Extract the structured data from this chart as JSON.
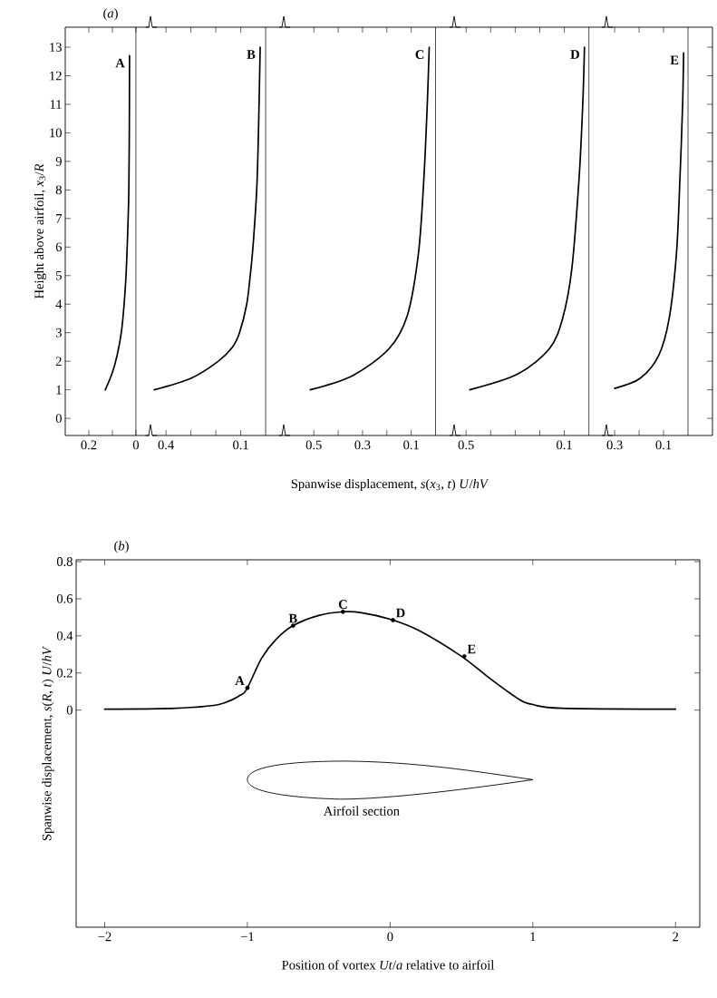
{
  "chart_data": [
    {
      "type": "line",
      "title": "(*a*)",
      "ylabel": "Height above airfoil, *x*$_{3}$/*R*",
      "xlim": [
        0.3,
        -0.058
      ],
      "ylim": [
        -0.6,
        13.7
      ],
      "xticks": [
        0.2,
        {
          "value": 0.1,
          "label": null
        },
        0
      ],
      "yticks": [
        0,
        1,
        2,
        3,
        4,
        5,
        6,
        7,
        8,
        9,
        10,
        11,
        12,
        13
      ],
      "ref_lines": [
        {
          "axis": "x",
          "value": 0
        }
      ],
      "series": [
        {
          "name": "A",
          "color": "#000000",
          "x": [
            0.13,
            0.1,
            0.08,
            0.062,
            0.05,
            0.042,
            0.037,
            0.033,
            0.03,
            0.028,
            0.027
          ],
          "values": [
            1,
            1.6,
            2.2,
            3,
            4,
            5,
            6,
            7,
            8,
            10,
            12.7
          ]
        }
      ]
    },
    {
      "type": "line",
      "xlim": [
        0.455,
        -0.076
      ],
      "ylim": [
        -0.6,
        13.7
      ],
      "tick_labels": "x",
      "xticks": [
        0.4,
        {
          "value": 0.3,
          "label": null
        },
        {
          "value": 0.2,
          "label": null
        },
        0.1
      ],
      "ref_lines": [
        {
          "axis": "x",
          "value": 0
        }
      ],
      "series": [
        {
          "name": "B",
          "color": "#000000",
          "x": [
            0.447,
            0.3,
            0.19,
            0.133,
            0.105,
            0.076,
            0.062,
            0.051,
            0.036,
            0.029,
            0.022
          ],
          "values": [
            1,
            1.4,
            2,
            2.5,
            3,
            4,
            5,
            6,
            8,
            10,
            13
          ]
        }
      ]
    },
    {
      "type": "line",
      "xlabel": "Spanwise displacement, *s*(*x*$_{3}$, *t*) *U*/*hV*",
      "xlim": [
        0.62,
        -0.08
      ],
      "ylim": [
        -0.6,
        13.7
      ],
      "tick_labels": "x",
      "xticks": [
        0.5,
        {
          "value": 0.4,
          "label": null
        },
        0.3,
        {
          "value": 0.2,
          "label": null
        },
        0.1
      ],
      "ref_lines": [
        {
          "axis": "x",
          "value": 0
        }
      ],
      "series": [
        {
          "name": "C",
          "color": "#000000",
          "x": [
            0.515,
            0.34,
            0.19,
            0.116,
            0.07,
            0.048,
            0.034,
            0.026
          ],
          "values": [
            1,
            1.5,
            2.45,
            3.6,
            5.8,
            8.4,
            11,
            13
          ]
        }
      ]
    },
    {
      "type": "line",
      "xlim": [
        0.545,
        -0.075
      ],
      "ylim": [
        -0.6,
        13.7
      ],
      "tick_labels": "x",
      "xticks": [
        0.5,
        {
          "value": 0.4,
          "label": null
        },
        {
          "value": 0.3,
          "label": null
        },
        {
          "value": 0.2,
          "label": null
        },
        0.1
      ],
      "ref_lines": [
        {
          "axis": "x",
          "value": 0
        }
      ],
      "series": [
        {
          "name": "D",
          "color": "#000000",
          "x": [
            0.485,
            0.29,
            0.16,
            0.107,
            0.07,
            0.04,
            0.025,
            0.018
          ],
          "values": [
            1,
            1.55,
            2.45,
            3.5,
            5.2,
            8.4,
            11,
            13
          ]
        }
      ]
    },
    {
      "type": "line",
      "xlim": [
        0.33,
        -0.1
      ],
      "ylim": [
        -0.6,
        13.7
      ],
      "tick_labels": "x",
      "xticks": [
        0.3,
        {
          "value": 0.2,
          "label": null
        },
        0.1
      ],
      "yticks": [
        0,
        1,
        2,
        3,
        4,
        5,
        6,
        7,
        8,
        9,
        10,
        11,
        12,
        13
      ],
      "ref_lines": [
        {
          "axis": "x",
          "value": 0
        }
      ],
      "series": [
        {
          "name": "E",
          "color": "#000000",
          "x": [
            0.3,
            0.196,
            0.12,
            0.077,
            0.047,
            0.033,
            0.022,
            0.018
          ],
          "values": [
            1.05,
            1.4,
            2.2,
            3.5,
            5.8,
            8.4,
            11,
            12.8
          ]
        }
      ]
    },
    {
      "type": "line",
      "title": "(*b*)",
      "xlabel": "Position of vortex *Ut*/*a* relative to airfoil",
      "ylabel": "Spanwise displacement, *s*(*R*, *t*) *U*/*hV*",
      "xlim": [
        -2.2,
        2.17
      ],
      "ylim": [
        -1.17,
        0.81
      ],
      "xticks": [
        {
          "value": -2,
          "label": "−2"
        },
        {
          "value": -1,
          "label": "−1"
        },
        0,
        1,
        2
      ],
      "yticks": [
        0,
        0.2,
        0.4,
        0.6,
        0.8
      ],
      "annotations": [
        {
          "text": "A",
          "x": -1,
          "y": 0.12
        },
        {
          "text": "B",
          "x": -0.68,
          "y": 0.455
        },
        {
          "text": "C",
          "x": -0.33,
          "y": 0.53
        },
        {
          "text": "D",
          "x": 0.02,
          "y": 0.485
        },
        {
          "text": "E",
          "x": 0.52,
          "y": 0.29
        },
        "Airfoil section"
      ],
      "series": [
        {
          "color": "#000000",
          "x": [
            -2,
            -1.5,
            -1.2,
            -1.05,
            -1,
            -0.9,
            -0.8,
            -0.68,
            -0.5,
            -0.33,
            -0.2,
            0,
            0.2,
            0.5,
            0.7,
            0.9,
            1,
            1.2,
            2
          ],
          "values": [
            0.005,
            0.01,
            0.03,
            0.08,
            0.12,
            0.28,
            0.38,
            0.455,
            0.51,
            0.53,
            0.525,
            0.49,
            0.43,
            0.29,
            0.17,
            0.06,
            0.03,
            0.01,
            0.005
          ]
        },
        {
          "type": "scatter",
          "marker": "circle",
          "color": "#000000",
          "x": [
            -1,
            -0.68,
            -0.33,
            0.02,
            0.52
          ],
          "values": [
            0.12,
            0.455,
            0.53,
            0.485,
            0.29
          ]
        }
      ]
    }
  ]
}
